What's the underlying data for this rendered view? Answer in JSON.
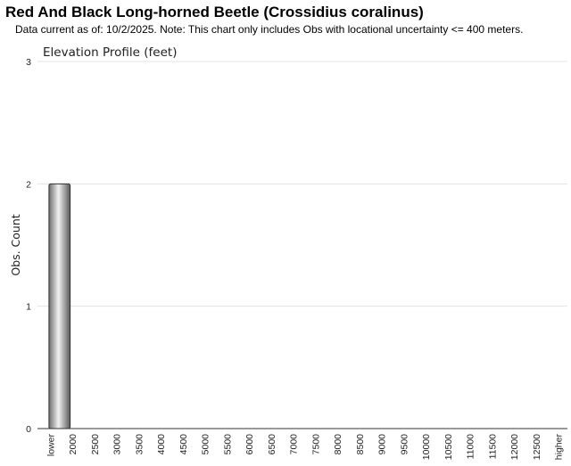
{
  "header": {
    "title": "Red And Black Long-horned Beetle   (Crossidius coralinus)",
    "subtitle": "Data current as of: 10/2/2025.    Note: This chart only includes Obs with locational uncertainty <= 400 meters."
  },
  "chart_data": {
    "type": "bar",
    "title": "Elevation Profile (feet)",
    "xlabel": "",
    "ylabel": "Obs. Count",
    "ylim": [
      0,
      3
    ],
    "yticks": [
      "0",
      "1",
      "2",
      "3"
    ],
    "grid": true,
    "categories": [
      "lower",
      "2000",
      "2500",
      "3000",
      "3500",
      "4000",
      "4500",
      "5000",
      "5500",
      "6000",
      "6500",
      "7000",
      "7500",
      "8000",
      "8500",
      "9000",
      "9500",
      "10000",
      "10500",
      "11000",
      "11500",
      "12000",
      "12500",
      "higher"
    ],
    "values": [
      2,
      0,
      0,
      0,
      0,
      0,
      0,
      0,
      0,
      0,
      0,
      0,
      0,
      0,
      0,
      0,
      0,
      0,
      0,
      0,
      0,
      0,
      0,
      0
    ]
  }
}
